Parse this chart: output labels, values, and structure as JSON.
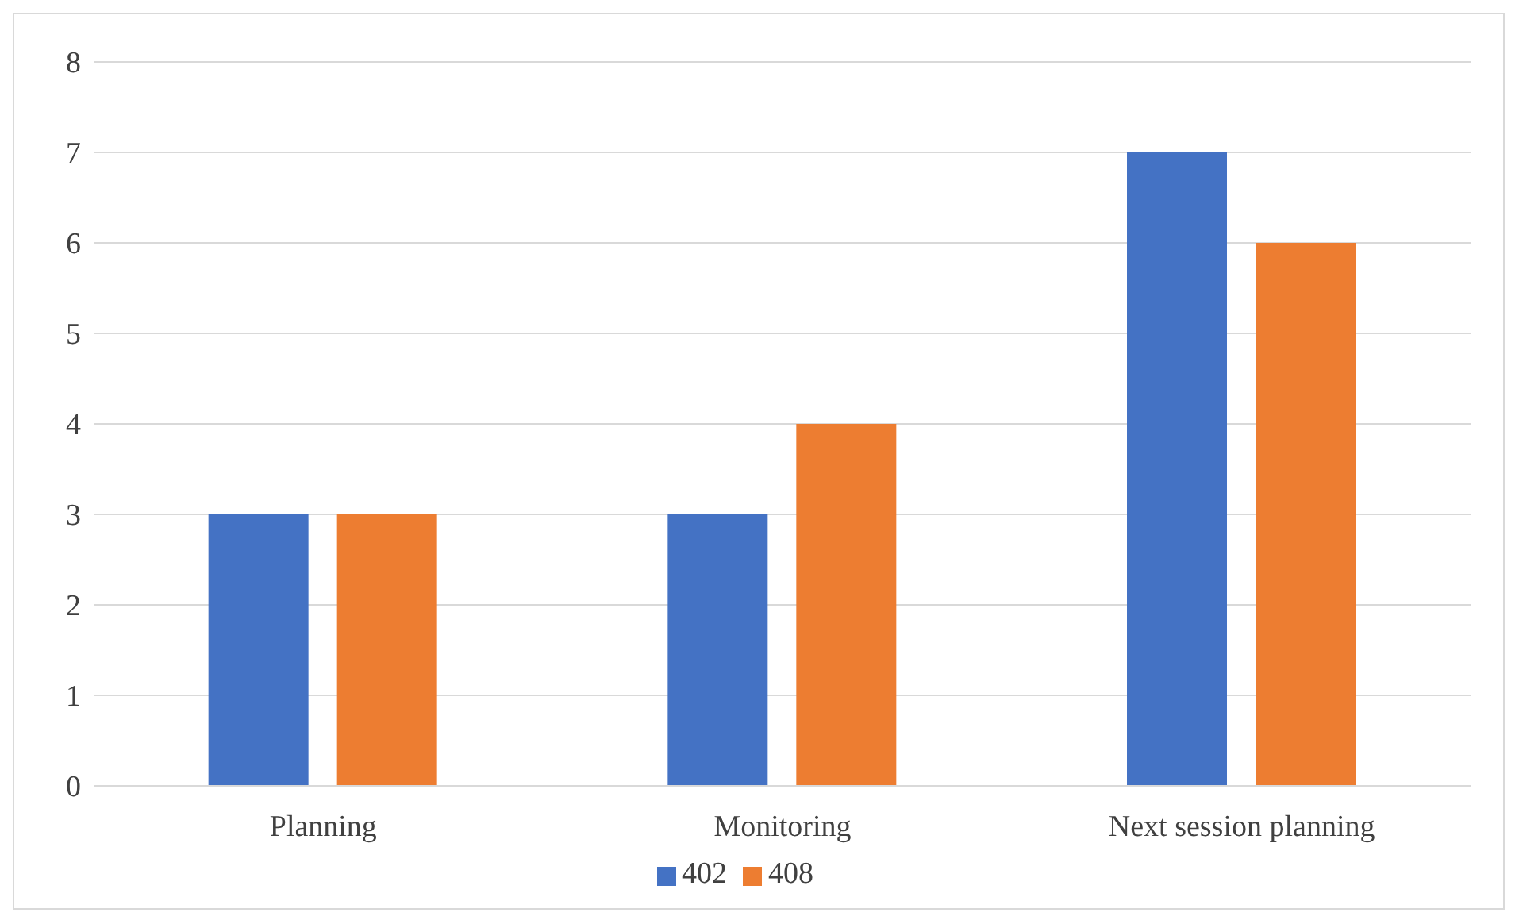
{
  "chart_data": {
    "type": "bar",
    "categories": [
      "Planning",
      "Monitoring",
      "Next session planning"
    ],
    "series": [
      {
        "name": "402",
        "color": "#4472c4",
        "values": [
          3,
          3,
          7
        ]
      },
      {
        "name": "408",
        "color": "#ed7d31",
        "values": [
          3,
          4,
          6
        ]
      }
    ],
    "ylim": [
      0,
      8
    ],
    "yticks": [
      0,
      1,
      2,
      3,
      4,
      5,
      6,
      7,
      8
    ],
    "grid": "y",
    "legend": "bottom"
  }
}
